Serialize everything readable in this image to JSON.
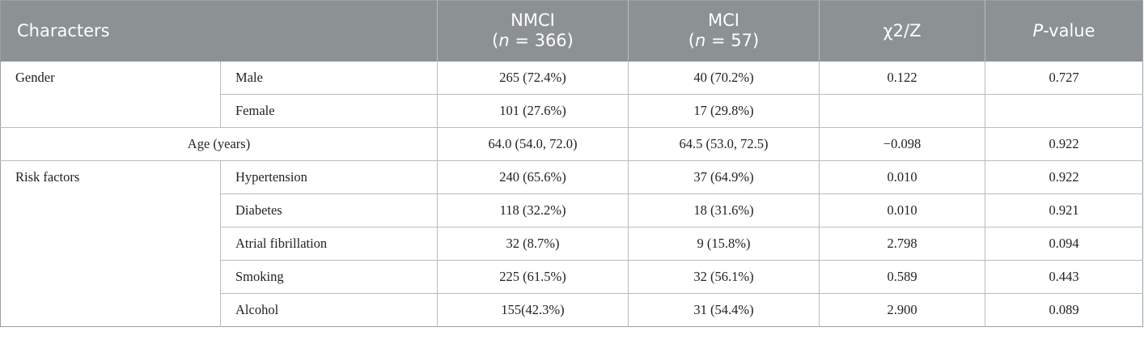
{
  "header": {
    "characters": "Characters",
    "nmci": "NMCI",
    "nmci_n_pre": "(",
    "nmci_n_italic": "n",
    "nmci_n_post": " = 366)",
    "mci": "MCI",
    "mci_n_pre": "(",
    "mci_n_italic": "n",
    "mci_n_post": " = 57)",
    "stat": "χ2/Z",
    "p_italic": "P",
    "p_rest": "-value"
  },
  "gender": {
    "label": "Gender",
    "rows": [
      {
        "sub": "Male",
        "nmci": "265 (72.4%)",
        "mci": "40 (70.2%)",
        "stat": "0.122",
        "p": "0.727"
      },
      {
        "sub": "Female",
        "nmci": "101 (27.6%)",
        "mci": "17 (29.8%)",
        "stat": "",
        "p": ""
      }
    ]
  },
  "age": {
    "label": "Age (years)",
    "nmci": "64.0 (54.0, 72.0)",
    "mci": "64.5 (53.0, 72.5)",
    "stat": "−0.098",
    "p": "0.922"
  },
  "risk": {
    "label": "Risk factors",
    "rows": [
      {
        "sub": "Hypertension",
        "nmci": "240 (65.6%)",
        "mci": "37 (64.9%)",
        "stat": "0.010",
        "p": "0.922"
      },
      {
        "sub": "Diabetes",
        "nmci": "118 (32.2%)",
        "mci": "18 (31.6%)",
        "stat": "0.010",
        "p": "0.921"
      },
      {
        "sub": "Atrial fibrillation",
        "nmci": "32 (8.7%)",
        "mci": "9 (15.8%)",
        "stat": "2.798",
        "p": "0.094"
      },
      {
        "sub": "Smoking",
        "nmci": "225 (61.5%)",
        "mci": "32 (56.1%)",
        "stat": "0.589",
        "p": "0.443"
      },
      {
        "sub": "Alcohol",
        "nmci": "155(42.3%)",
        "mci": "31 (54.4%)",
        "stat": "2.900",
        "p": "0.089"
      }
    ]
  }
}
